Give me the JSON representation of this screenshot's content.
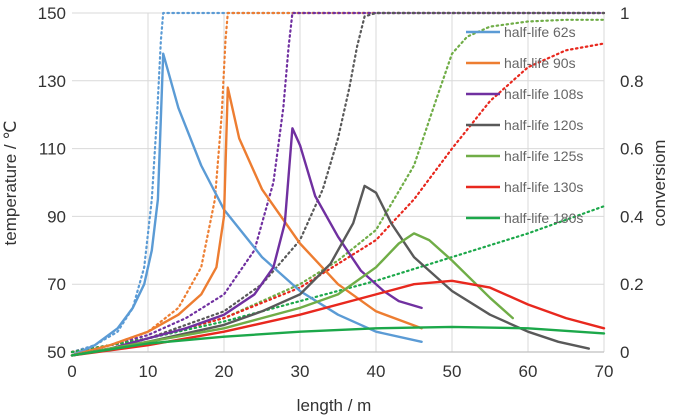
{
  "chart_data": {
    "type": "line",
    "title": "",
    "xlabel": "length / m",
    "ylabel_left": "temperature / ℃",
    "ylabel_right": "conversiom",
    "xlim": [
      0,
      70
    ],
    "ylim_left": [
      50,
      150
    ],
    "ylim_right": [
      0,
      1
    ],
    "x_ticks": [
      "0",
      "10",
      "20",
      "30",
      "40",
      "50",
      "60",
      "70"
    ],
    "y_ticks_left": [
      "50",
      "70",
      "90",
      "110",
      "130",
      "150"
    ],
    "y_ticks_right": [
      "0",
      "0.2",
      "0.4",
      "0.6",
      "0.8",
      "1"
    ],
    "grid": true,
    "legend_position": "top-right",
    "series": [
      {
        "name": "half-life 62s",
        "color": "#5b9bd5",
        "temperature": {
          "x": [
            0,
            3,
            6,
            8,
            9.5,
            10.5,
            11.3,
            12,
            14,
            17,
            20,
            25,
            30,
            35,
            40,
            46
          ],
          "y": [
            49,
            52,
            57,
            63,
            70,
            80,
            95,
            138,
            122,
            105,
            92,
            78,
            68,
            61,
            56,
            53
          ]
        },
        "conversion": {
          "x": [
            0,
            3,
            6,
            8,
            9.5,
            10.5,
            11.2,
            11.7,
            12,
            14,
            20,
            30,
            40,
            50,
            60,
            70
          ],
          "y": [
            0,
            0.02,
            0.06,
            0.13,
            0.25,
            0.45,
            0.7,
            0.92,
            1,
            1,
            1,
            1,
            1,
            1,
            1,
            1
          ]
        }
      },
      {
        "name": "half-life 90s",
        "color": "#ed7d31",
        "temperature": {
          "x": [
            0,
            5,
            10,
            14,
            17,
            19,
            20,
            20.5,
            22,
            25,
            30,
            35,
            40,
            46
          ],
          "y": [
            49,
            52,
            56,
            61,
            67,
            75,
            90,
            128,
            113,
            98,
            82,
            70,
            62,
            57
          ]
        },
        "conversion": {
          "x": [
            0,
            5,
            10,
            14,
            17,
            18.8,
            19.7,
            20.2,
            20.5,
            22,
            30,
            40,
            50,
            60,
            70
          ],
          "y": [
            0,
            0.02,
            0.06,
            0.13,
            0.25,
            0.45,
            0.7,
            0.92,
            1,
            1,
            1,
            1,
            1,
            1,
            1
          ]
        }
      },
      {
        "name": "half-life 108s",
        "color": "#7030a0",
        "temperature": {
          "x": [
            0,
            5,
            10,
            15,
            20,
            24,
            26.5,
            28,
            29,
            30,
            32,
            35,
            38,
            41,
            43,
            46
          ],
          "y": [
            49,
            51,
            54,
            57,
            61,
            67,
            75,
            88,
            116,
            111,
            96,
            84,
            74,
            68,
            65,
            63
          ]
        },
        "conversion": {
          "x": [
            0,
            5,
            10,
            15,
            20,
            24,
            26.5,
            27.8,
            28.5,
            29,
            30,
            40,
            50,
            60,
            70
          ],
          "y": [
            0,
            0.02,
            0.05,
            0.1,
            0.17,
            0.3,
            0.5,
            0.72,
            0.9,
            1,
            1,
            1,
            1,
            1,
            1
          ]
        }
      },
      {
        "name": "half-life 120s",
        "color": "#595959",
        "temperature": {
          "x": [
            0,
            10,
            20,
            25,
            30,
            34,
            37,
            38.5,
            40,
            42,
            45,
            50,
            55,
            60,
            64,
            68
          ],
          "y": [
            49,
            53,
            58,
            62,
            67,
            76,
            88,
            99,
            97,
            88,
            78,
            68,
            61,
            56,
            53,
            51
          ]
        },
        "conversion": {
          "x": [
            0,
            10,
            20,
            25,
            30,
            33,
            35,
            36.5,
            37.5,
            38.5,
            40,
            50,
            60,
            70
          ],
          "y": [
            0,
            0.04,
            0.12,
            0.2,
            0.33,
            0.48,
            0.63,
            0.78,
            0.9,
            0.99,
            1,
            1,
            1,
            1
          ]
        }
      },
      {
        "name": "half-life 125s",
        "color": "#70ad47",
        "temperature": {
          "x": [
            0,
            10,
            20,
            30,
            35,
            40,
            43,
            45,
            47,
            50,
            55,
            58
          ],
          "y": [
            49,
            53,
            57,
            63,
            67,
            75,
            82,
            85,
            83,
            77,
            66,
            60
          ]
        },
        "conversion": {
          "x": [
            0,
            10,
            20,
            30,
            35,
            40,
            45,
            48,
            50,
            52,
            55,
            60,
            65,
            70
          ],
          "y": [
            0,
            0.04,
            0.1,
            0.2,
            0.27,
            0.36,
            0.55,
            0.75,
            0.88,
            0.93,
            0.96,
            0.975,
            0.98,
            0.98
          ]
        }
      },
      {
        "name": "half-life 130s",
        "color": "#e8281e",
        "temperature": {
          "x": [
            0,
            10,
            20,
            30,
            40,
            45,
            50,
            55,
            60,
            65,
            70
          ],
          "y": [
            49,
            52,
            56,
            61,
            67,
            70,
            71,
            69,
            64,
            60,
            57
          ]
        },
        "conversion": {
          "x": [
            0,
            10,
            20,
            30,
            40,
            45,
            50,
            55,
            60,
            65,
            70
          ],
          "y": [
            0,
            0.04,
            0.1,
            0.19,
            0.33,
            0.45,
            0.6,
            0.74,
            0.84,
            0.89,
            0.91
          ]
        }
      },
      {
        "name": "half-life 180s",
        "color": "#1ca84a",
        "temperature": {
          "x": [
            0,
            10,
            20,
            30,
            40,
            50,
            60,
            70
          ],
          "y": [
            49,
            52.5,
            54.5,
            56,
            57,
            57.4,
            57,
            55.5
          ]
        },
        "conversion": {
          "x": [
            0,
            10,
            20,
            30,
            40,
            50,
            60,
            70
          ],
          "y": [
            0,
            0.04,
            0.09,
            0.15,
            0.21,
            0.28,
            0.35,
            0.43
          ]
        }
      }
    ]
  }
}
